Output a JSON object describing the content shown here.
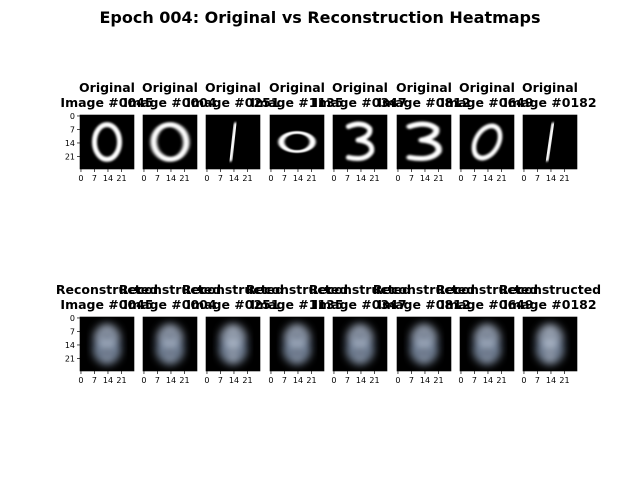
{
  "figure": {
    "title": "Epoch 004: Original vs Reconstruction Heatmaps"
  },
  "chart_data": [
    {
      "type": "heatmap",
      "row_label": "Original",
      "colormap": "bone",
      "ticks": [
        0,
        7,
        14,
        21
      ],
      "panels": [
        {
          "label": "Original",
          "image": "Image #0045",
          "digit": "0"
        },
        {
          "label": "Original",
          "image": "Image #0004",
          "digit": "0"
        },
        {
          "label": "Original",
          "image": "Image #0251",
          "digit": "1"
        },
        {
          "label": "Original",
          "image": "Image #1135",
          "digit": "0"
        },
        {
          "label": "Original",
          "image": "Image #0347",
          "digit": "3"
        },
        {
          "label": "Original",
          "image": "Image #0812",
          "digit": "3"
        },
        {
          "label": "Original",
          "image": "Image #0649",
          "digit": "0"
        },
        {
          "label": "Original",
          "image": "Image #0182",
          "digit": "1"
        }
      ]
    },
    {
      "type": "heatmap",
      "row_label": "Reconstructed",
      "colormap": "bone",
      "ticks": [
        0,
        7,
        14,
        21
      ],
      "panels": [
        {
          "label": "Reconstructed",
          "image": "Image #0045"
        },
        {
          "label": "Reconstructed",
          "image": "Image #0004"
        },
        {
          "label": "Reconstructed",
          "image": "Image #0251"
        },
        {
          "label": "Reconstructed",
          "image": "Image #1135"
        },
        {
          "label": "Reconstructed",
          "image": "Image #0347"
        },
        {
          "label": "Reconstructed",
          "image": "Image #0812"
        },
        {
          "label": "Reconstructed",
          "image": "Image #0649"
        },
        {
          "label": "Reconstructed",
          "image": "Image #0182"
        }
      ]
    }
  ]
}
